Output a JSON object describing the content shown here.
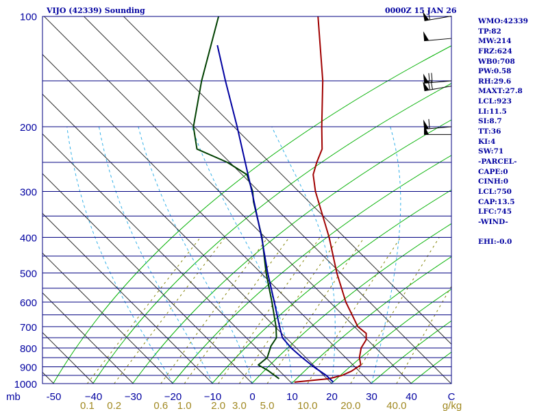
{
  "header": {
    "station": "VIJO (42339) Sounding",
    "valid_time": "0000Z 15 JAN 26"
  },
  "colors": {
    "isobar": "#000080",
    "isotherm": "#333333",
    "dry_adiabat": "#00b000",
    "moist_adiabat": "#33b0e8",
    "mixing_ratio": "#808000",
    "temperature": "#a00000",
    "dewpoint": "#004000",
    "parcel": "#0000a0",
    "label_blue": "#0000a0",
    "mixing_label": "#a08820",
    "wind_barb": "#000000"
  },
  "stats": [
    {
      "label": "WMO",
      "value": "42339"
    },
    {
      "label": "TP",
      "value": "82"
    },
    {
      "label": "MW",
      "value": "214"
    },
    {
      "label": "FRZ",
      "value": "624"
    },
    {
      "label": "WB0",
      "value": "708"
    },
    {
      "label": "PW",
      "value": "0.58"
    },
    {
      "label": "RH",
      "value": "29.6"
    },
    {
      "label": "MAXT",
      "value": "27.8"
    },
    {
      "label": "LCL",
      "value": "923"
    },
    {
      "label": "LI",
      "value": "11.5"
    },
    {
      "label": "SI",
      "value": "8.7"
    },
    {
      "label": "TT",
      "value": "36"
    },
    {
      "label": "KI",
      "value": "4"
    },
    {
      "label": "SW",
      "value": "71"
    },
    {
      "label": "",
      "value": "-PARCEL-"
    },
    {
      "label": "CAPE",
      "value": "0"
    },
    {
      "label": "CINH",
      "value": "0"
    },
    {
      "label": "LCL",
      "value": "750"
    },
    {
      "label": "CAP",
      "value": "13.5"
    },
    {
      "label": "LFC",
      "value": "745"
    },
    {
      "label": "",
      "value": "-WIND-"
    },
    {
      "label": "",
      "value": ""
    },
    {
      "label": "EHI",
      "value": "-0.0"
    }
  ],
  "chart_data": {
    "type": "line",
    "title": "VIJO (42339) Sounding",
    "subtitle": "0000Z 15 JAN 26",
    "xlabel": "",
    "ylabel": "mb",
    "x_unit_label": "C",
    "mixing_unit_label": "g/kg",
    "y_scale": "log",
    "ylim": [
      1000,
      100
    ],
    "xlim": [
      -50,
      50
    ],
    "isobars": [
      1000,
      950,
      900,
      850,
      800,
      750,
      700,
      650,
      600,
      550,
      500,
      450,
      400,
      350,
      300,
      250,
      200,
      150,
      100
    ],
    "pressure_tick_labels": [
      {
        "p": 100,
        "text": "100"
      },
      {
        "p": 200,
        "text": "200"
      },
      {
        "p": 300,
        "text": "300"
      },
      {
        "p": 400,
        "text": "400"
      },
      {
        "p": 500,
        "text": "500"
      },
      {
        "p": 600,
        "text": "600"
      },
      {
        "p": 700,
        "text": "700"
      },
      {
        "p": 800,
        "text": "800"
      },
      {
        "p": 900,
        "text": "900"
      },
      {
        "p": 1000,
        "text": "1000"
      }
    ],
    "temperature_tick_labels": [
      {
        "t": -50,
        "text": "-50"
      },
      {
        "t": -40,
        "text": "−40"
      },
      {
        "t": -30,
        "text": "−30"
      },
      {
        "t": -20,
        "text": "−20"
      },
      {
        "t": -10,
        "text": "−10"
      },
      {
        "t": 0,
        "text": "0"
      },
      {
        "t": 10,
        "text": "10"
      },
      {
        "t": 20,
        "text": "20"
      },
      {
        "t": 30,
        "text": "30"
      },
      {
        "t": 40,
        "text": "40"
      }
    ],
    "mixing_ratio_labels": [
      {
        "w": 0.1,
        "text": "0.1"
      },
      {
        "w": 0.2,
        "text": "0.2"
      },
      {
        "w": 0.6,
        "text": "0.6"
      },
      {
        "w": 1.0,
        "text": "1.0"
      },
      {
        "w": 2.0,
        "text": "2.0"
      },
      {
        "w": 3.0,
        "text": "3.0"
      },
      {
        "w": 5.0,
        "text": "5.0"
      },
      {
        "w": 10.0,
        "text": "10.0"
      },
      {
        "w": 20.0,
        "text": "20.0"
      },
      {
        "w": 40.0,
        "text": "40.0"
      }
    ],
    "series": [
      {
        "kind": "temperature",
        "points": [
          {
            "p": 991,
            "t": 10.2
          },
          {
            "p": 970,
            "t": 18.0
          },
          {
            "p": 950,
            "t": 20.5
          },
          {
            "p": 925,
            "t": 21.8
          },
          {
            "p": 890,
            "t": 22.6
          },
          {
            "p": 850,
            "t": 20.4
          },
          {
            "p": 800,
            "t": 18.4
          },
          {
            "p": 760,
            "t": 17.6
          },
          {
            "p": 730,
            "t": 16.0
          },
          {
            "p": 700,
            "t": 12.2
          },
          {
            "p": 600,
            "t": 3.0
          },
          {
            "p": 500,
            "t": -6.6
          },
          {
            "p": 400,
            "t": -17.5
          },
          {
            "p": 300,
            "t": -32.5
          },
          {
            "p": 270,
            "t": -37.3
          },
          {
            "p": 250,
            "t": -39.5
          },
          {
            "p": 230,
            "t": -41.5
          },
          {
            "p": 200,
            "t": -47.2
          },
          {
            "p": 150,
            "t": -58.5
          },
          {
            "p": 100,
            "t": -76.0
          }
        ]
      },
      {
        "kind": "dewpoint",
        "points": [
          {
            "p": 970,
            "t": 5.5
          },
          {
            "p": 920,
            "t": 0.5
          },
          {
            "p": 890,
            "t": -3.2
          },
          {
            "p": 850,
            "t": -2.8
          },
          {
            "p": 790,
            "t": -4.8
          },
          {
            "p": 750,
            "t": -5.5
          },
          {
            "p": 700,
            "t": -8.4
          },
          {
            "p": 600,
            "t": -15.6
          },
          {
            "p": 500,
            "t": -24.4
          },
          {
            "p": 400,
            "t": -34.4
          },
          {
            "p": 320,
            "t": -45.5
          },
          {
            "p": 300,
            "t": -48.3
          },
          {
            "p": 270,
            "t": -54.0
          },
          {
            "p": 250,
            "t": -62.0
          },
          {
            "p": 230,
            "t": -73.0
          },
          {
            "p": 200,
            "t": -79.5
          },
          {
            "p": 150,
            "t": -89.0
          },
          {
            "p": 100,
            "t": -101.0
          }
        ]
      },
      {
        "kind": "parcel",
        "points": [
          {
            "p": 991,
            "t": 20.0
          },
          {
            "p": 950,
            "t": 16.5
          },
          {
            "p": 900,
            "t": 11.2
          },
          {
            "p": 850,
            "t": 6.0
          },
          {
            "p": 800,
            "t": 0.8
          },
          {
            "p": 750,
            "t": -4.0
          },
          {
            "p": 700,
            "t": -7.5
          },
          {
            "p": 600,
            "t": -15.0
          },
          {
            "p": 500,
            "t": -24.0
          },
          {
            "p": 400,
            "t": -34.5
          },
          {
            "p": 300,
            "t": -48.5
          },
          {
            "p": 250,
            "t": -57.5
          },
          {
            "p": 200,
            "t": -68.5
          },
          {
            "p": 150,
            "t": -83.0
          },
          {
            "p": 120,
            "t": -94.0
          }
        ]
      }
    ],
    "wind_barbs": [
      {
        "p": 100,
        "direction": 260,
        "speed": 60
      },
      {
        "p": 115,
        "direction": 265,
        "speed": 50
      },
      {
        "p": 150,
        "direction": 265,
        "speed": 70
      },
      {
        "p": 155,
        "direction": 260,
        "speed": 75
      },
      {
        "p": 200,
        "direction": 265,
        "speed": 65
      },
      {
        "p": 210,
        "direction": 270,
        "speed": 55
      }
    ]
  }
}
